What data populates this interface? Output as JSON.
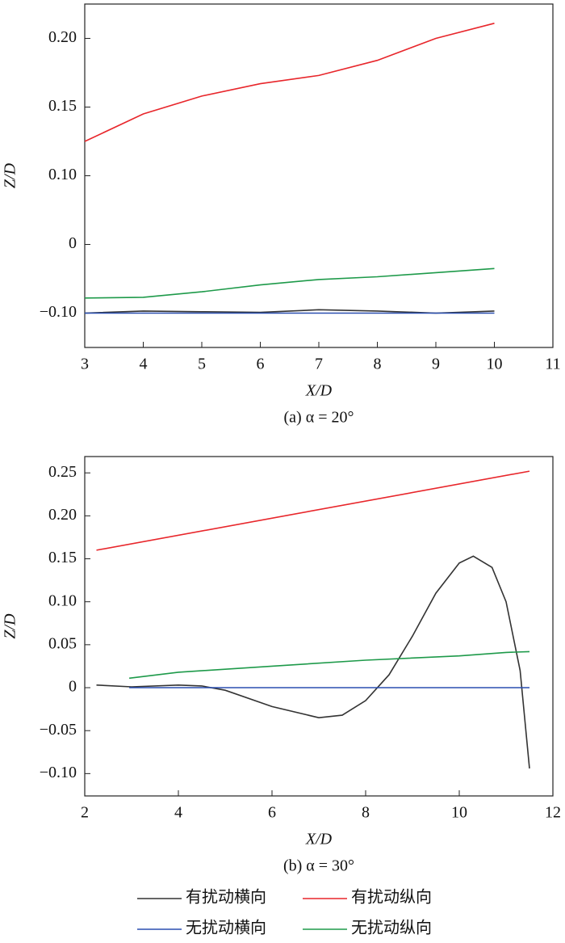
{
  "chart_data": [
    {
      "type": "line",
      "caption": "(a) α = 20°",
      "xlabel": "X/D",
      "ylabel": "Z/D",
      "xlim": [
        3,
        11
      ],
      "xticks": [
        3,
        4,
        5,
        6,
        7,
        8,
        9,
        10,
        11
      ],
      "ylim": [
        -0.15,
        0.225
      ],
      "yticks": [
        {
          "value": -0.1,
          "label": "−0.10"
        },
        0,
        {
          "value": 0.1,
          "label": "0.10"
        },
        {
          "value": 0.15,
          "label": "0.15"
        },
        {
          "value": 0.2,
          "label": "0.20"
        }
      ],
      "series": [
        {
          "color": "#333333",
          "x": [
            3,
            4,
            5,
            6,
            7,
            8,
            9,
            10
          ],
          "values": [
            -0.1,
            -0.097,
            -0.098,
            -0.099,
            -0.095,
            -0.097,
            -0.1,
            -0.097
          ]
        },
        {
          "color": "#e8262b",
          "x": [
            3,
            4,
            5,
            6,
            7,
            8,
            9,
            10
          ],
          "values": [
            0.125,
            0.145,
            0.158,
            0.167,
            0.173,
            0.184,
            0.2,
            0.211
          ]
        },
        {
          "color": "#2a4fb0",
          "x": [
            3,
            4,
            5,
            6,
            7,
            8,
            9,
            10
          ],
          "values": [
            -0.1,
            -0.1,
            -0.1,
            -0.1,
            -0.1,
            -0.1,
            -0.1,
            -0.1
          ]
        },
        {
          "color": "#1e9a4a",
          "x": [
            3,
            4,
            5,
            6,
            7,
            8,
            9,
            10
          ],
          "values": [
            -0.078,
            -0.077,
            -0.069,
            -0.059,
            -0.051,
            -0.047,
            -0.041,
            -0.035
          ]
        }
      ]
    },
    {
      "type": "line",
      "caption": "(b) α = 30°",
      "xlabel": "X/D",
      "ylabel": "Z/D",
      "xlim": [
        2,
        12
      ],
      "xticks": [
        2,
        4,
        6,
        8,
        10,
        12
      ],
      "ylim": [
        -0.126,
        0.269
      ],
      "yticks": [
        {
          "value": -0.1,
          "label": "−0.10"
        },
        {
          "value": -0.05,
          "label": "−0.05"
        },
        0,
        {
          "value": 0.05,
          "label": "0.05"
        },
        {
          "value": 0.1,
          "label": "0.10"
        },
        {
          "value": 0.15,
          "label": "0.15"
        },
        {
          "value": 0.2,
          "label": "0.20"
        },
        {
          "value": 0.25,
          "label": "0.25"
        }
      ],
      "series": [
        {
          "name": "有扰动横向",
          "color": "#333333",
          "x": [
            2.25,
            3,
            4,
            4.5,
            5,
            6,
            7,
            7.5,
            8,
            8.5,
            9,
            9.5,
            10,
            10.3,
            10.7,
            11,
            11.3,
            11.5
          ],
          "values": [
            0.003,
            0.001,
            0.003,
            0.002,
            -0.003,
            -0.022,
            -0.035,
            -0.032,
            -0.015,
            0.015,
            0.06,
            0.11,
            0.145,
            0.153,
            0.14,
            0.1,
            0.02,
            -0.094
          ]
        },
        {
          "name": "有扰动纵向",
          "color": "#e8262b",
          "x": [
            2.25,
            11.5
          ],
          "values": [
            0.16,
            0.252
          ]
        },
        {
          "name": "无扰动横向",
          "color": "#2a4fb0",
          "x": [
            2.95,
            11.5
          ],
          "values": [
            0,
            0
          ]
        },
        {
          "name": "无扰动纵向",
          "color": "#1e9a4a",
          "x": [
            2.95,
            4,
            6,
            8,
            10,
            11,
            11.5
          ],
          "values": [
            0.011,
            0.018,
            0.025,
            0.032,
            0.037,
            0.041,
            0.042
          ]
        }
      ]
    }
  ]
}
